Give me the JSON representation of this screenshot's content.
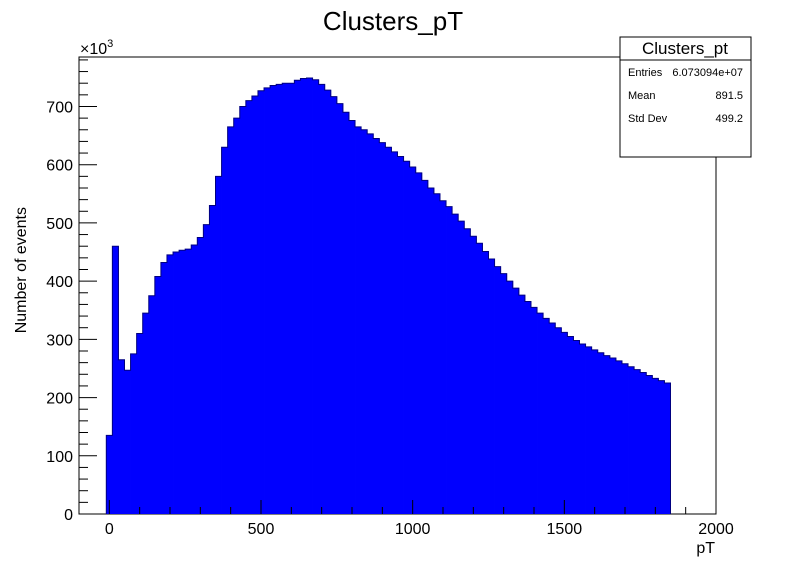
{
  "chart_data": {
    "type": "bar",
    "title": "Clusters_pT",
    "xlabel": "pT",
    "ylabel": "Number of events",
    "y_multiplier_label": "×10",
    "y_multiplier_exponent": "3",
    "xlim": [
      -100,
      2000
    ],
    "ylim": [
      0,
      785
    ],
    "x_ticks": [
      0,
      500,
      1000,
      1500,
      2000
    ],
    "x_tick_labels": [
      "0",
      "500",
      "1000",
      "1500",
      "2000"
    ],
    "y_ticks": [
      0,
      100,
      200,
      300,
      400,
      500,
      600,
      700
    ],
    "y_tick_labels": [
      "0",
      "100",
      "200",
      "300",
      "400",
      "500",
      "600",
      "700"
    ],
    "bin_width": 20,
    "bin_start": -10,
    "values": [
      135,
      460,
      265,
      247,
      275,
      310,
      345,
      375,
      408,
      432,
      445,
      450,
      453,
      455,
      462,
      475,
      497,
      530,
      580,
      630,
      665,
      680,
      700,
      710,
      718,
      727,
      732,
      736,
      738,
      740,
      740,
      745,
      748,
      749,
      746,
      738,
      728,
      717,
      705,
      690,
      676,
      665,
      660,
      653,
      645,
      638,
      630,
      622,
      614,
      606,
      596,
      586,
      573,
      560,
      550,
      538,
      528,
      515,
      503,
      490,
      477,
      465,
      451,
      438,
      425,
      413,
      400,
      388,
      376,
      365,
      355,
      345,
      336,
      328,
      320,
      312,
      305,
      298,
      292,
      287,
      282,
      277,
      272,
      268,
      263,
      258,
      253,
      248,
      243,
      238,
      233,
      229,
      225
    ],
    "bar_color": "#0000ff",
    "grid": false,
    "stats_box": {
      "title": "Clusters_pt",
      "rows": [
        {
          "label": "Entries",
          "value": "6.073094e+07"
        },
        {
          "label": "Mean",
          "value": "891.5"
        },
        {
          "label": "Std Dev",
          "value": "499.2"
        }
      ],
      "placement": "top-right"
    }
  }
}
